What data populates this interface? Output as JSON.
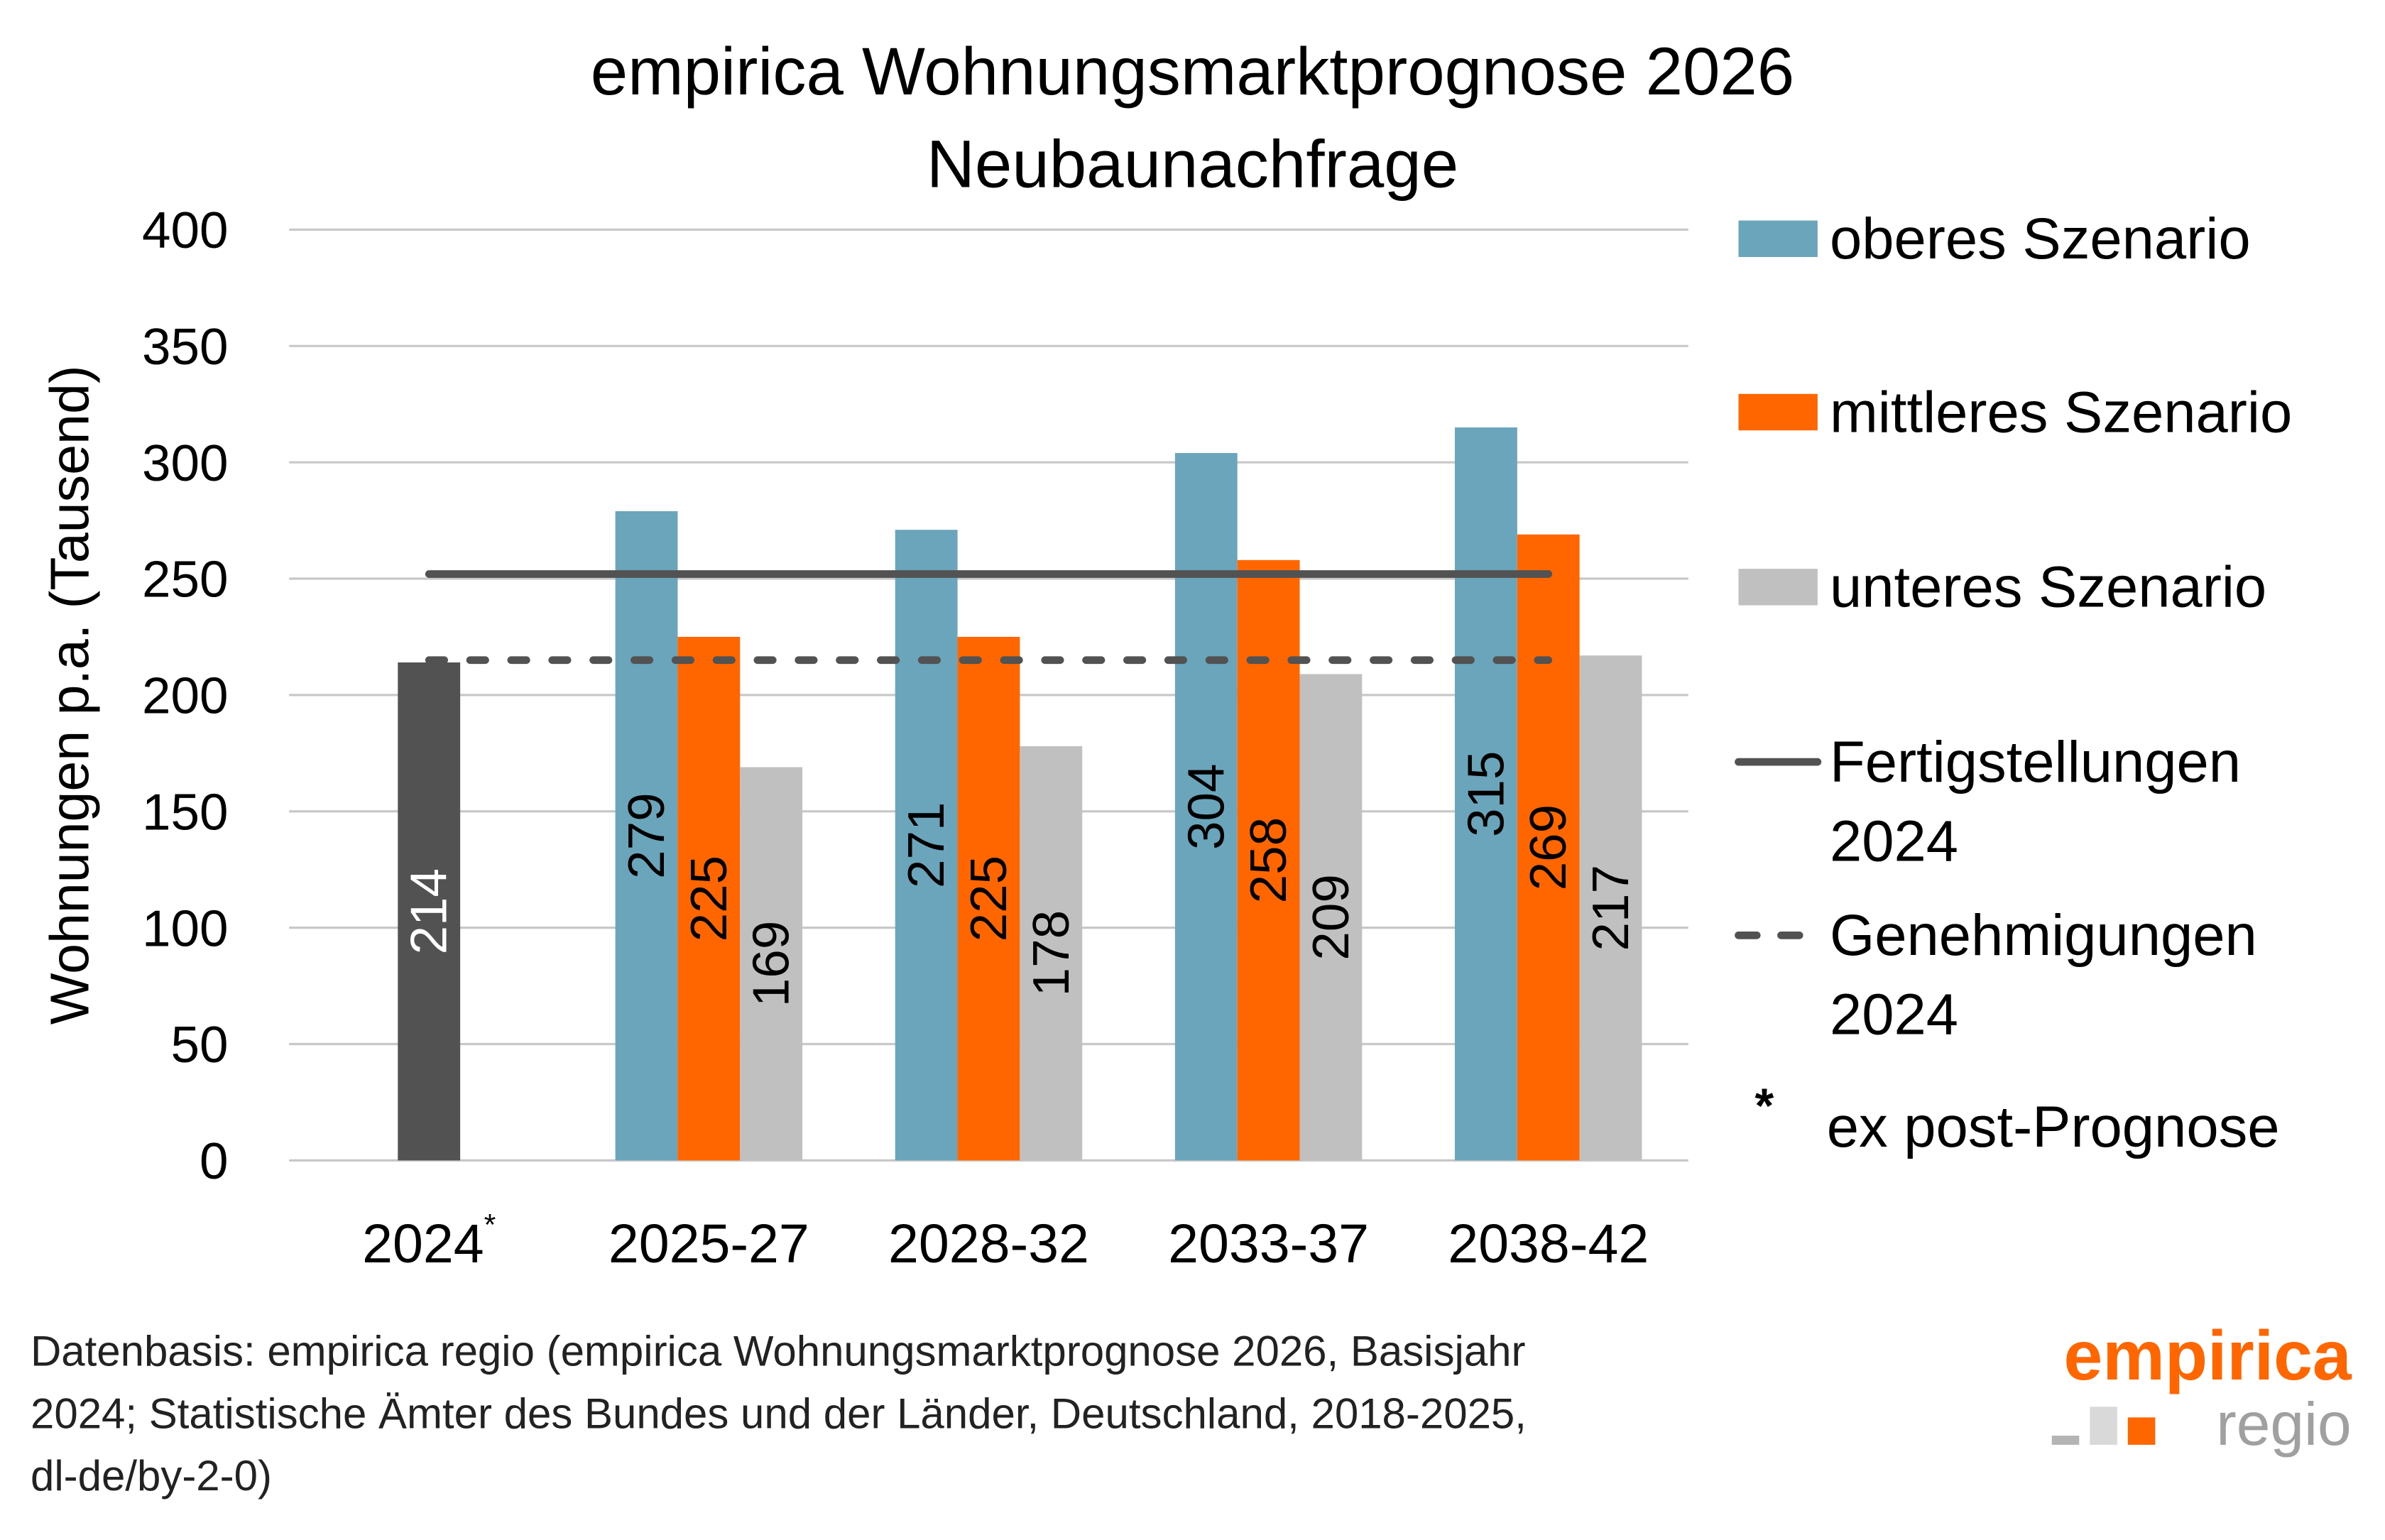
{
  "chart_data": {
    "type": "bar",
    "title": "empirica Wohnungsmarktprognose 2026",
    "subtitle": "Neubaunachfrage",
    "ylabel": "Wohnungen p.a. (Tausend)",
    "xlabel": "",
    "ylim": [
      0,
      400
    ],
    "yticks": [
      0,
      50,
      100,
      150,
      200,
      250,
      300,
      350,
      400
    ],
    "grid": true,
    "legend_position": "right",
    "categories": [
      "2024",
      "2025-27",
      "2028-32",
      "2033-37",
      "2038-42"
    ],
    "category_marks": [
      "*",
      "",
      "",
      "",
      ""
    ],
    "base_bar": {
      "category": "2024",
      "value": 214,
      "color": "#525252"
    },
    "series": [
      {
        "name": "oberes Szenario",
        "color": "#6aa5bb",
        "values": [
          null,
          279,
          271,
          304,
          315
        ]
      },
      {
        "name": "mittleres Szenario",
        "color": "#ff6600",
        "values": [
          null,
          225,
          225,
          258,
          269
        ]
      },
      {
        "name": "unteres Szenario",
        "color": "#c0c0c0",
        "values": [
          null,
          169,
          178,
          209,
          217
        ]
      }
    ],
    "reference_lines": [
      {
        "name_line1": "Fertigstellungen",
        "name_line2": "2024",
        "value": 252,
        "style": "solid",
        "color": "#525252"
      },
      {
        "name_line1": "Genehmigungen",
        "name_line2": "2024",
        "value": 215,
        "style": "dashed",
        "color": "#525252"
      }
    ],
    "footnote_symbol": "*",
    "footnote_label": "ex post-Prognose"
  },
  "source": {
    "lines": [
      "Datenbasis: empirica regio (empirica Wohnungsmarktprognose 2026, Basisjahr",
      "2024; Statistische Ämter des Bundes und der Länder, Deutschland, 2018-2025,",
      "dl-de/by-2-0)"
    ]
  },
  "logo": {
    "word1": "empirica",
    "word2": "regio",
    "orange": "#ff6600",
    "grey": "#a0a0a0"
  }
}
